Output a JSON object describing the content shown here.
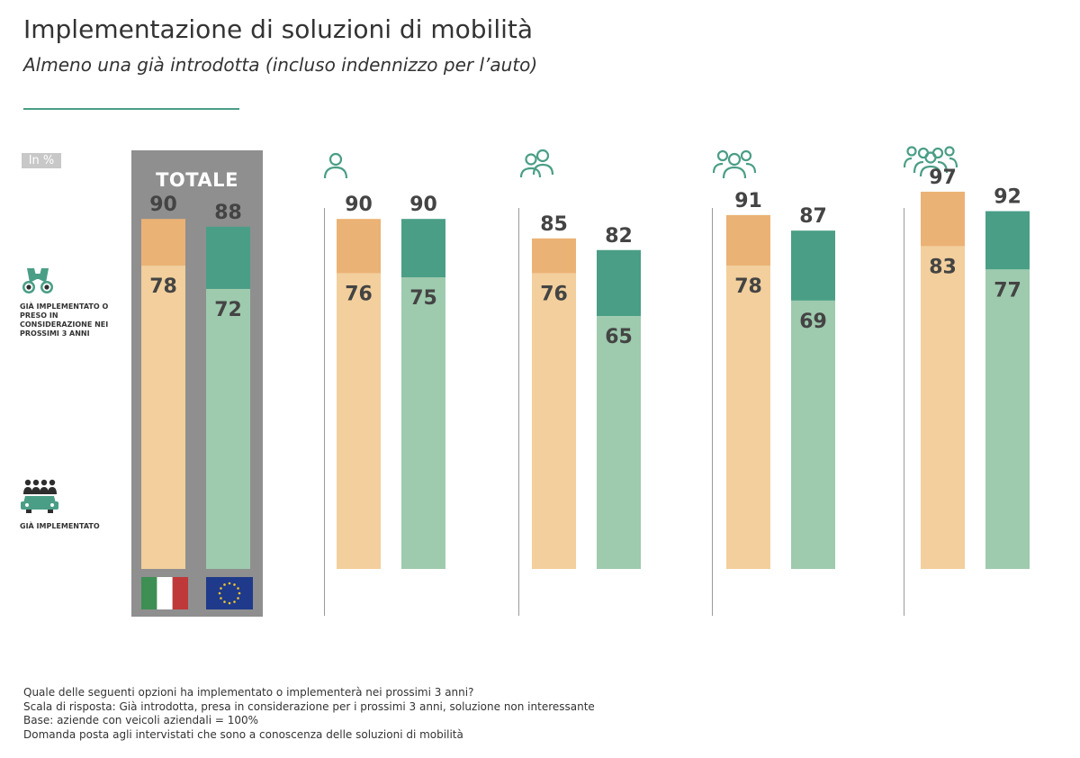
{
  "title": "Implementazione di soluzioni di mobilità",
  "subtitle": "Almeno una già introdotta (incluso indennizzo per l’auto)",
  "unit_label": "In %",
  "total_label": "TOTALE",
  "legend": {
    "upper": "GIÀ IMPLEMENTATO O PRESO IN CONSIDERAZIONE NEI PROSSIMI 3 ANNI",
    "lower": "GIÀ IMPLEMENTATO"
  },
  "colors": {
    "orange_dark": "#ebb275",
    "orange_light": "#f2cf9c",
    "green_dark": "#4a9e86",
    "green_light": "#9ecaae",
    "panel": "#8f8f8f",
    "value_text": "#444444"
  },
  "icons": [
    "binoculars-icon",
    "employees-car-icon",
    "one-person-icon",
    "two-people-icon",
    "three-people-icon",
    "four-people-icon",
    "italy-flag-icon",
    "eu-flag-icon"
  ],
  "chart_data": {
    "type": "bar",
    "categories": [
      "TOTALE",
      "1",
      "2",
      "3",
      "4"
    ],
    "series": [
      {
        "upper": [
          90,
          90,
          85,
          91,
          97
        ],
        "lower": [
          78,
          76,
          76,
          78,
          83
        ]
      },
      {
        "upper": [
          88,
          90,
          82,
          87,
          92
        ],
        "lower": [
          72,
          75,
          65,
          69,
          77
        ]
      }
    ],
    "ylim": [
      0,
      100
    ],
    "grid": false
  },
  "footnotes": [
    "Quale delle seguenti opzioni ha implementato o implementerà nei prossimi 3 anni?",
    "Scala di risposta: Già introdotta, presa in considerazione per i prossimi 3 anni, soluzione non interessante",
    "Base: aziende con veicoli aziendali = 100%",
    "Domanda posta agli intervistati che sono a conoscenza delle soluzioni di mobilità"
  ]
}
